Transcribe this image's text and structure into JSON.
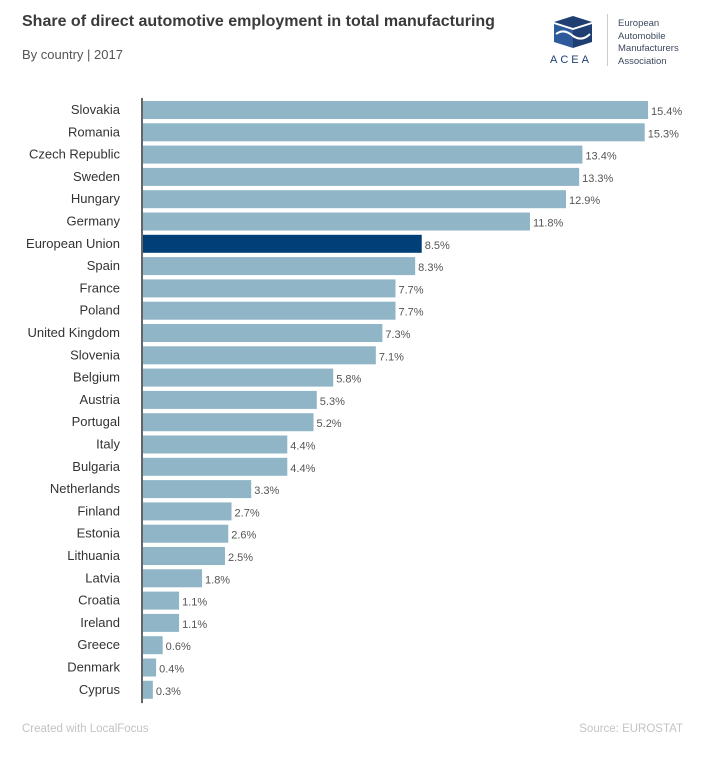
{
  "header": {
    "title": "Share of direct automotive employment in total manufacturing",
    "subtitle": "By country | 2017"
  },
  "logo": {
    "wordmark": "ACEA",
    "lines": [
      "European",
      "Automobile",
      "Manufacturers",
      "Association"
    ]
  },
  "footer": {
    "credit": "Created with LocalFocus",
    "source": "Source: EUROSTAT"
  },
  "colors": {
    "bar": "#8fb5c6",
    "highlight": "#003f78",
    "axis": "#333333",
    "label": "#333333",
    "value": "#555555"
  },
  "chart_data": {
    "type": "bar",
    "orientation": "horizontal",
    "title": "Share of direct automotive employment in total manufacturing",
    "subtitle": "By country | 2017",
    "categories": [
      "Slovakia",
      "Romania",
      "Czech Republic",
      "Sweden",
      "Hungary",
      "Germany",
      "European Union",
      "Spain",
      "France",
      "Poland",
      "United Kingdom",
      "Slovenia",
      "Belgium",
      "Austria",
      "Portugal",
      "Italy",
      "Bulgaria",
      "Netherlands",
      "Finland",
      "Estonia",
      "Lithuania",
      "Latvia",
      "Croatia",
      "Ireland",
      "Greece",
      "Denmark",
      "Cyprus"
    ],
    "values": [
      15.4,
      15.3,
      13.4,
      13.3,
      12.9,
      11.8,
      8.5,
      8.3,
      7.7,
      7.7,
      7.3,
      7.1,
      5.8,
      5.3,
      5.2,
      4.4,
      4.4,
      3.3,
      2.7,
      2.6,
      2.5,
      1.8,
      1.1,
      1.1,
      0.6,
      0.4,
      0.3
    ],
    "value_labels": [
      "15.4%",
      "15.3%",
      "13.4%",
      "13.3%",
      "12.9%",
      "11.8%",
      "8.5%",
      "8.3%",
      "7.7%",
      "7.7%",
      "7.3%",
      "7.1%",
      "5.8%",
      "5.3%",
      "5.2%",
      "4.4%",
      "4.4%",
      "3.3%",
      "2.7%",
      "2.6%",
      "2.5%",
      "1.8%",
      "1.1%",
      "1.1%",
      "0.6%",
      "0.4%",
      "0.3%"
    ],
    "highlight": "European Union",
    "xlim": [
      0,
      15.4
    ],
    "grid": false,
    "legend": "none"
  }
}
